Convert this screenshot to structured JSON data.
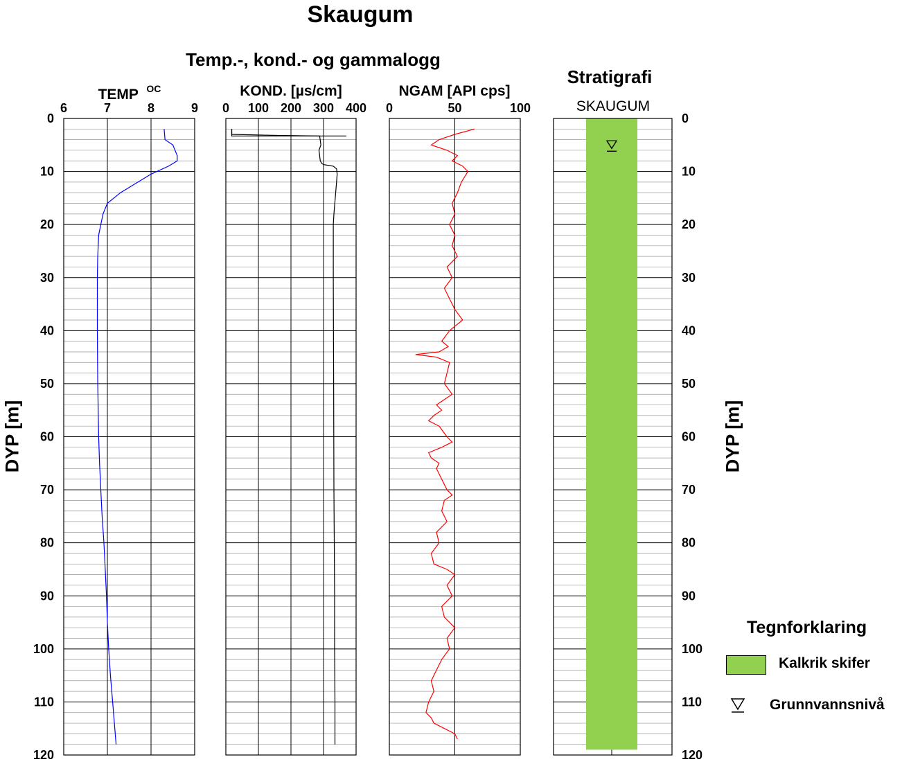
{
  "title": "Skaugum",
  "subtitle": "Temp.-, kond.- og gammalogg",
  "stratigraphy": {
    "title": "Stratigrafi",
    "well_name": "SKAUGUM",
    "fill_color": "#92D050",
    "unit_top_m": 0,
    "unit_bottom_m": 119,
    "groundwater_level_m": 5
  },
  "y_axis_label": "DYP  [m]",
  "legend": {
    "title": "Tegnforklaring",
    "items": [
      {
        "label": "Kalkrik skifer",
        "symbol": "green-swatch",
        "color": "#92D050"
      },
      {
        "label": "Grunnvannsnivå",
        "symbol": "groundwater-triangle-icon"
      }
    ]
  },
  "chart_data": [
    {
      "type": "line",
      "name": "temp",
      "title": "TEMP",
      "unit": "OC",
      "xlim": [
        6,
        9
      ],
      "x_ticks": [
        "6",
        "7",
        "8",
        "9"
      ],
      "ylim": [
        0,
        120
      ],
      "y_ticks": [
        "0",
        "10",
        "20",
        "30",
        "40",
        "50",
        "60",
        "70",
        "80",
        "90",
        "100",
        "110",
        "120"
      ],
      "y_inverted": true,
      "grid": true,
      "color": "#0000FF",
      "x": [
        8.3,
        8.32,
        8.5,
        8.6,
        8.6,
        8.4,
        8.0,
        7.7,
        7.3,
        7.0,
        6.9,
        6.85,
        6.8,
        6.78,
        6.77,
        6.77,
        6.78,
        6.8,
        6.82,
        6.85,
        6.88,
        6.92,
        6.95,
        6.98,
        7.0,
        7.03,
        7.07,
        7.12,
        7.17,
        7.2
      ],
      "y": [
        2,
        4,
        5,
        7,
        8,
        9,
        10.5,
        12,
        14,
        16,
        18,
        20,
        22,
        26,
        30,
        40,
        50,
        60,
        65,
        70,
        75,
        80,
        85,
        90,
        95,
        100,
        105,
        110,
        115,
        118
      ]
    },
    {
      "type": "line",
      "name": "kond",
      "title": "KOND. [µs/cm]",
      "xlim": [
        0,
        400
      ],
      "x_ticks": [
        "0",
        "100",
        "200",
        "300",
        "400"
      ],
      "ylim": [
        0,
        120
      ],
      "y_inverted": true,
      "grid": true,
      "color": "#000000",
      "x": [
        18,
        18,
        160,
        288,
        292,
        286,
        288,
        290,
        295,
        300,
        310,
        330,
        340,
        342,
        340,
        336,
        332,
        330,
        330,
        331,
        332,
        333,
        334,
        334,
        335,
        335
      ],
      "y": [
        2,
        3,
        3.2,
        3.3,
        5,
        6,
        7,
        8,
        8.5,
        8.7,
        8.8,
        9,
        9.5,
        10.5,
        12,
        15,
        18,
        20,
        30,
        50,
        70,
        80,
        90,
        100,
        110,
        118
      ],
      "segments": [
        {
          "x": [
            18,
            18,
            370
          ],
          "y": [
            2,
            3.3,
            3.3
          ]
        }
      ]
    },
    {
      "type": "line",
      "name": "ngam",
      "title": "NGAM [API cps]",
      "xlim": [
        0,
        100
      ],
      "x_ticks": [
        "0",
        "50",
        "100"
      ],
      "ylim": [
        0,
        120
      ],
      "y_inverted": true,
      "grid": true,
      "color": "#FF0000",
      "x": [
        65,
        50,
        38,
        32,
        44,
        52,
        48,
        56,
        60,
        55,
        52,
        48,
        50,
        46,
        50,
        48,
        52,
        44,
        48,
        42,
        46,
        50,
        56,
        46,
        40,
        45,
        38,
        20,
        36,
        46,
        44,
        42,
        48,
        36,
        40,
        34,
        30,
        38,
        44,
        48,
        40,
        30,
        32,
        38,
        36,
        40,
        44,
        48,
        42,
        40,
        44,
        36,
        38,
        32,
        34,
        44,
        50,
        44,
        48,
        40,
        42,
        50,
        44,
        46,
        40,
        36,
        32,
        34,
        30,
        28,
        32,
        34,
        42,
        50,
        52
      ],
      "y": [
        2,
        3,
        4,
        5,
        6,
        7,
        8,
        9,
        10,
        12,
        14,
        16,
        18,
        20,
        22,
        24,
        26,
        28,
        30,
        32,
        34,
        36,
        38,
        40,
        42,
        43,
        44,
        44.5,
        45,
        46,
        48,
        50,
        52,
        54,
        55,
        56,
        57,
        58,
        60,
        61,
        62,
        63,
        64,
        65,
        66,
        68,
        70,
        71,
        72,
        74,
        76,
        78,
        80,
        82,
        84,
        85,
        86,
        88,
        90,
        92,
        94,
        96,
        98,
        100,
        102,
        104,
        106,
        108,
        110,
        112,
        113,
        114,
        115,
        116,
        117
      ]
    },
    {
      "type": "area",
      "name": "stratigraphy-column",
      "xlim": [
        0,
        1
      ],
      "ylim": [
        0,
        120
      ],
      "y_ticks": [
        "0",
        "10",
        "20",
        "30",
        "40",
        "50",
        "60",
        "70",
        "80",
        "90",
        "100",
        "110",
        "120"
      ],
      "y_inverted": true,
      "grid": true,
      "series": [
        {
          "name": "Kalkrik skifer",
          "top": 0,
          "bottom": 119,
          "color": "#92D050"
        }
      ]
    }
  ]
}
